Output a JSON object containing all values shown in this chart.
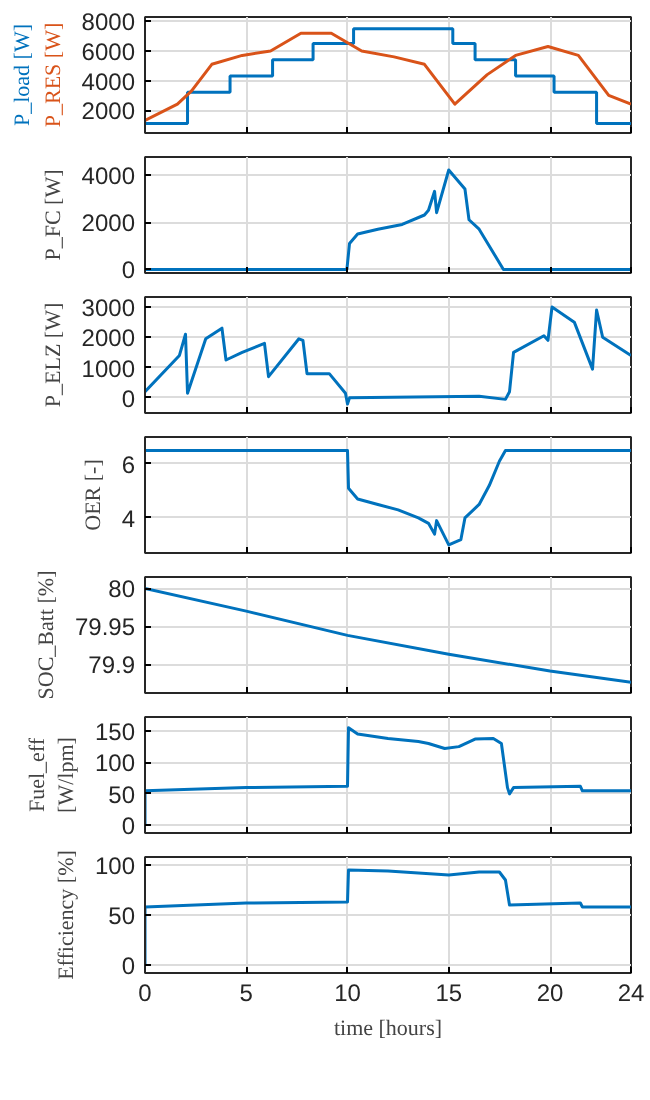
{
  "chart_data": [
    {
      "type": "step",
      "xlim": [
        0,
        24
      ],
      "xticks": [
        0,
        5,
        10,
        15,
        20,
        24
      ],
      "ylim": [
        450,
        8300
      ],
      "yticks": [
        2000,
        4000,
        6000,
        8000
      ],
      "grid": true,
      "tick_labels": "y",
      "legend": "left",
      "series": [
        {
          "name": "P_load [W]",
          "color": "#0072bd",
          "type": "step",
          "x": [
            0,
            2.1,
            4.2,
            6.3,
            8.3,
            10.3,
            15.2,
            16.3,
            18.3,
            20.2,
            22.3,
            24
          ],
          "values": [
            1100,
            3200,
            4300,
            5400,
            6500,
            7500,
            6500,
            5400,
            4300,
            3200,
            1100,
            1100
          ]
        },
        {
          "name": "P_RES [W]",
          "color": "#d95319",
          "type": "line",
          "x": [
            0,
            1.6,
            2.3,
            3.3,
            4.8,
            6.2,
            7.7,
            9.2,
            10.7,
            12.3,
            13.8,
            15.3,
            16.9,
            18.3,
            19.9,
            21.4,
            22.9,
            24
          ],
          "values": [
            1300,
            2400,
            3300,
            5100,
            5700,
            6000,
            7200,
            7200,
            6000,
            5600,
            5100,
            2400,
            4400,
            5700,
            6300,
            5700,
            3000,
            2400
          ]
        }
      ]
    },
    {
      "type": "line",
      "ylabel": "P_FC [W]",
      "xlim": [
        0,
        24
      ],
      "xticks": [
        0,
        5,
        10,
        15,
        20,
        24
      ],
      "ylim": [
        -150,
        4750
      ],
      "yticks": [
        0,
        2000,
        4000
      ],
      "grid": true,
      "tick_labels": "y",
      "series": [
        {
          "color": "#0072bd",
          "x": [
            0,
            9.97,
            10.1,
            10.5,
            11.5,
            12.7,
            13.8,
            14.0,
            14.3,
            14.4,
            15.0,
            15.8,
            16.0,
            16.5,
            17.7,
            24
          ],
          "values": [
            0,
            0,
            1100,
            1500,
            1700,
            1900,
            2300,
            2500,
            3300,
            2400,
            4200,
            3400,
            2100,
            1700,
            0,
            0
          ]
        }
      ]
    },
    {
      "type": "line",
      "ylabel": "P_ELZ [W]",
      "xlim": [
        0,
        24
      ],
      "xticks": [
        0,
        5,
        10,
        15,
        20,
        24
      ],
      "ylim": [
        -500,
        3330
      ],
      "yticks": [
        0,
        1000,
        2000,
        3000
      ],
      "grid": true,
      "tick_labels": "y",
      "series": [
        {
          "color": "#0072bd",
          "x": [
            0,
            1.7,
            2.0,
            2.1,
            3.0,
            3.8,
            4.0,
            4.8,
            5.9,
            6.1,
            7.6,
            7.8,
            8.0,
            9.1,
            9.9,
            10.0,
            10.1,
            16.5,
            17.8,
            18.0,
            18.2,
            19.7,
            19.9,
            20.1,
            21.2,
            22.1,
            22.3,
            22.6,
            24
          ],
          "values": [
            200,
            1400,
            2100,
            150,
            1950,
            2300,
            1250,
            1500,
            1800,
            700,
            1950,
            1900,
            800,
            800,
            150,
            -200,
            0,
            50,
            -50,
            200,
            1500,
            2050,
            1900,
            3000,
            2500,
            950,
            2900,
            2000,
            1400
          ]
        }
      ]
    },
    {
      "type": "line",
      "ylabel": "OER [-]",
      "xlim": [
        0,
        24
      ],
      "xticks": [
        0,
        5,
        10,
        15,
        20,
        24
      ],
      "ylim": [
        2.7,
        7
      ],
      "yticks": [
        4,
        6
      ],
      "grid": true,
      "tick_labels": "y",
      "series": [
        {
          "color": "#0072bd",
          "x": [
            0,
            10.0,
            10.05,
            10.5,
            11.5,
            12.5,
            13.5,
            14.0,
            14.3,
            14.4,
            15.0,
            15.6,
            15.8,
            16.5,
            17.0,
            17.5,
            17.8,
            24
          ],
          "values": [
            6.5,
            6.5,
            5.1,
            4.7,
            4.5,
            4.3,
            4.0,
            3.8,
            3.4,
            3.9,
            3.0,
            3.2,
            4.0,
            4.5,
            5.2,
            6.1,
            6.5,
            6.5
          ]
        }
      ]
    },
    {
      "type": "line",
      "ylabel": "SOC_Batt [%]",
      "xlim": [
        0,
        24
      ],
      "xticks": [
        0,
        5,
        10,
        15,
        20,
        24
      ],
      "ylim": [
        79.862,
        80.015
      ],
      "yticks": [
        79.9,
        79.95,
        80
      ],
      "grid": true,
      "tick_labels": "y",
      "series": [
        {
          "color": "#0072bd",
          "x": [
            0,
            5,
            10,
            15,
            20,
            24
          ],
          "values": [
            80.0,
            79.97,
            79.938,
            79.913,
            79.891,
            79.876
          ]
        }
      ]
    },
    {
      "type": "line",
      "ylabel": "Fuel_eff\n[W/lpm]",
      "xlim": [
        0,
        24
      ],
      "xticks": [
        0,
        5,
        10,
        15,
        20,
        24
      ],
      "ylim": [
        -12,
        172
      ],
      "yticks": [
        0,
        50,
        100,
        150
      ],
      "grid": true,
      "tick_labels": "y",
      "series": [
        {
          "color": "#0072bd",
          "x": [
            0,
            0,
            5,
            10,
            10.05,
            10.5,
            12,
            13.5,
            14.0,
            14.8,
            15.5,
            16.3,
            17.2,
            17.6,
            17.9,
            18.0,
            18.2,
            21.5,
            21.6,
            24
          ],
          "values": [
            0,
            55,
            60,
            62,
            155,
            145,
            138,
            133,
            130,
            122,
            125,
            137,
            138,
            130,
            60,
            50,
            60,
            62,
            55,
            55
          ]
        }
      ]
    },
    {
      "type": "line",
      "ylabel": "Efficiency [%]",
      "xlabel": "time [hours]",
      "xlim": [
        0,
        24
      ],
      "xticks": [
        0,
        5,
        10,
        15,
        20,
        24
      ],
      "ylim": [
        -8,
        108
      ],
      "yticks": [
        0,
        50,
        100
      ],
      "grid": true,
      "series": [
        {
          "color": "#0072bd",
          "x": [
            0,
            0,
            5,
            10,
            10.05,
            12,
            15,
            16.5,
            17.5,
            17.8,
            18.0,
            21.5,
            21.6,
            24
          ],
          "values": [
            0,
            58,
            62,
            63,
            95,
            94,
            90,
            93,
            93,
            85,
            60,
            62,
            58,
            58
          ]
        }
      ]
    }
  ]
}
